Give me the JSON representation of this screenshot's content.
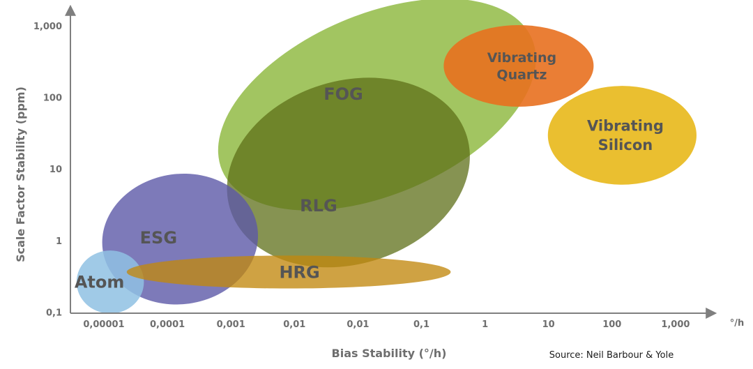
{
  "chart_data": {
    "type": "bubble",
    "xlabel": "Bias Stability (°/h)",
    "ylabel": "Scale Factor Stability (ppm)",
    "x_unit_label": "°/h",
    "x_ticks": [
      "0,00001",
      "0,0001",
      "0,001",
      "0,01",
      "0,01",
      "0,1",
      "1",
      "10",
      "100",
      "1,000"
    ],
    "y_ticks": [
      "1,000",
      "100",
      "10",
      "1",
      "0,1"
    ],
    "y_scale": "log",
    "source": "Source: Neil Barbour & Yole",
    "regions": [
      {
        "id": "fog",
        "label_lines": [
          "FOG"
        ],
        "color": "#7aac1e",
        "x_center_tick": 4.3,
        "y_center_decade": 1.9,
        "x_radius_ticks": 2.65,
        "y_radius_decades": 1.26,
        "angle": -23,
        "opacity": 0.7
      },
      {
        "id": "rlg",
        "label_lines": [
          "RLG"
        ],
        "color": "#5d6f18",
        "x_center_tick": 3.85,
        "y_center_decade": 0.95,
        "x_radius_ticks": 1.95,
        "y_radius_decades": 1.28,
        "angle": -17,
        "opacity": 0.75
      },
      {
        "id": "esg",
        "label_lines": [
          "ESG"
        ],
        "color": "#5d59a7",
        "x_center_tick": 1.2,
        "y_center_decade": 0.02,
        "x_radius_ticks": 1.23,
        "y_radius_decades": 0.91,
        "angle": -8,
        "opacity": 0.8
      },
      {
        "id": "atom",
        "label_lines": [
          "Atom"
        ],
        "color": "#8fc1e3",
        "x_center_tick": 0.1,
        "y_center_decade": -0.58,
        "x_radius_ticks": 0.53,
        "y_radius_decades": 0.44,
        "angle": 0,
        "opacity": 0.85
      },
      {
        "id": "hrg",
        "label_lines": [
          "HRG"
        ],
        "color": "#c2880e",
        "x_center_tick": 2.91,
        "y_center_decade": -0.44,
        "x_radius_ticks": 2.55,
        "y_radius_decades": 0.23,
        "angle": 0,
        "opacity": 0.78
      },
      {
        "id": "vib-quartz",
        "label_lines": [
          "Vibrating",
          "Quartz"
        ],
        "color": "#e8701f",
        "x_center_tick": 6.53,
        "y_center_decade": 2.44,
        "x_radius_ticks": 1.18,
        "y_radius_decades": 0.57,
        "angle": 0,
        "opacity": 0.9
      },
      {
        "id": "vib-silicon",
        "label_lines": [
          "Vibrating",
          "Silicon"
        ],
        "color": "#e8b81a",
        "x_center_tick": 8.16,
        "y_center_decade": 1.47,
        "x_radius_ticks": 1.17,
        "y_radius_decades": 0.69,
        "angle": 0,
        "opacity": 0.9
      }
    ]
  }
}
